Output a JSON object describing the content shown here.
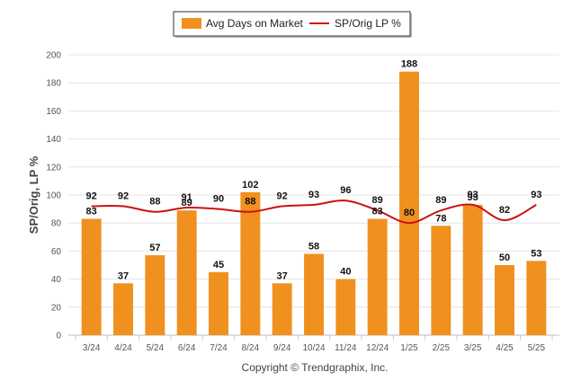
{
  "chart_data": {
    "type": "bar",
    "categories": [
      "3/24",
      "4/24",
      "5/24",
      "6/24",
      "7/24",
      "8/24",
      "9/24",
      "10/24",
      "11/24",
      "12/24",
      "1/25",
      "2/25",
      "3/25",
      "4/25",
      "5/25"
    ],
    "series": [
      {
        "name": "Avg Days on Market",
        "type": "bar",
        "color": "#F0901E",
        "values": [
          83,
          37,
          57,
          89,
          45,
          102,
          37,
          58,
          40,
          83,
          188,
          78,
          93,
          50,
          53
        ]
      },
      {
        "name": "SP/Orig LP %",
        "type": "line",
        "color": "#CC1111",
        "values": [
          92,
          92,
          88,
          91,
          90,
          88,
          92,
          93,
          96,
          89,
          80,
          89,
          93,
          82,
          93
        ]
      }
    ],
    "ylabel": "SP/Orig, LP %",
    "ylim": [
      0,
      200
    ],
    "yticks": [
      0,
      20,
      40,
      60,
      80,
      100,
      120,
      140,
      160,
      180,
      200
    ],
    "grid": true,
    "legend_position": "top-center"
  },
  "footer": {
    "copyright": "Copyright © Trendgraphix, Inc."
  }
}
